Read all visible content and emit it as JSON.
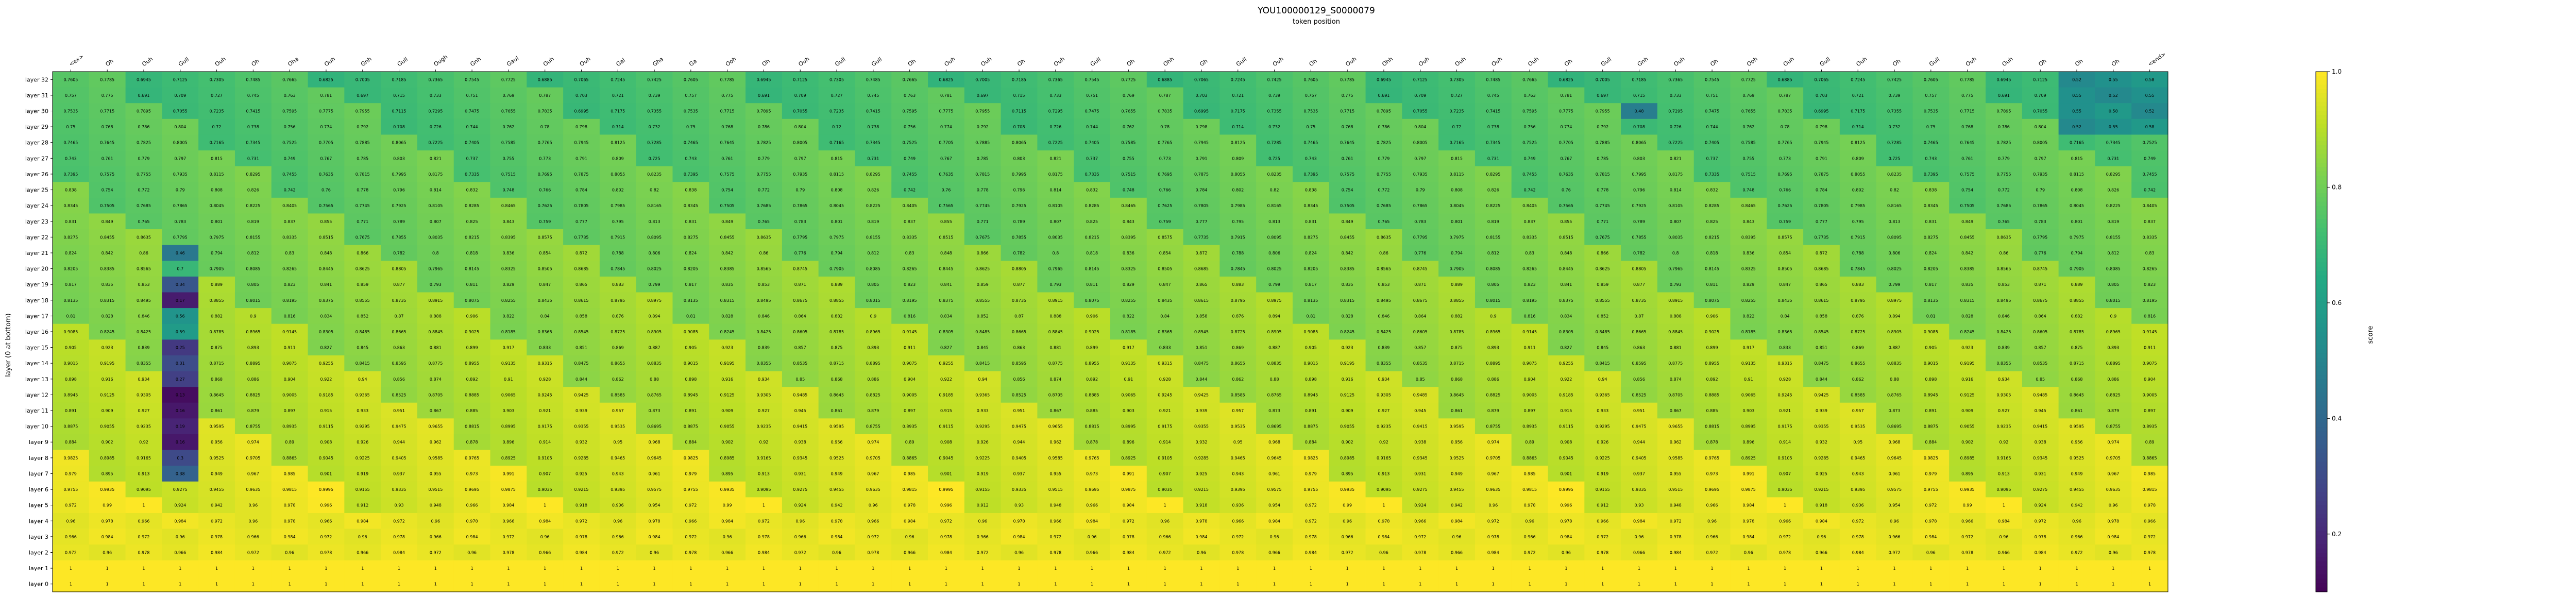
{
  "chart_data": {
    "type": "heatmap",
    "title": "YOU100000129_S0000079",
    "subtitle": "token position",
    "xlabel": "",
    "ylabel": "layer (0 at bottom)",
    "colorbar_label": "score",
    "colormap": "viridis",
    "colorbar_ticks": [
      0.2,
      0.4,
      0.6,
      0.8,
      1.0
    ],
    "colorbar_tick_labels": [
      "0.2",
      "0.4",
      "0.6",
      "0.8",
      "1.0"
    ],
    "zlim": [
      0.1,
      1.0
    ],
    "grid": false,
    "legend": "colorbar-right",
    "x_tokens": [
      "<ex>",
      "Oh",
      "Ouh",
      "Gull",
      "Ouh",
      "Oh",
      "Oha",
      "Ouh",
      "Gnh",
      "Gull",
      "Ough",
      "Gnh",
      "Gaul",
      "Ouh",
      "Ouh",
      "Gal",
      "Gha",
      "Ga",
      "Ooh",
      "Oh",
      "Ouh",
      "Gull",
      "Gull",
      "Oh",
      "Ouh",
      "Ouh",
      "Oh",
      "Ouh",
      "Gull",
      "Oh",
      "Ohh",
      "Gh",
      "Gull",
      "Ouh",
      "Oh",
      "Ouh",
      "Ohh",
      "Ouh",
      "Ouh",
      "Ouh",
      "Ouh",
      "Oh",
      "Gull",
      "Gnh",
      "Ouh",
      "Oh",
      "Ooh",
      "Ouh",
      "Gull",
      "Ouh",
      "Oh",
      "Gull",
      "Ouh",
      "Ouh",
      "Oh",
      "Oh",
      "Oh",
      "<end>"
    ],
    "x_tokens_note_source": "",
    "layers": [
      "layer 32",
      "layer 31",
      "layer 30",
      "layer 29",
      "layer 28",
      "layer 27",
      "layer 26",
      "layer 25",
      "layer 24",
      "layer 23",
      "layer 22",
      "layer 21",
      "layer 20",
      "layer 19",
      "layer 18",
      "layer 17",
      "layer 16",
      "layer 15",
      "layer 14",
      "layer 13",
      "layer 12",
      "layer 11",
      "layer 10",
      "layer 9",
      "layer 8",
      "layer 7",
      "layer 6",
      "layer 5",
      "layer 4",
      "layer 3",
      "layer 2",
      "layer 1",
      "layer 0"
    ],
    "values": []
  }
}
